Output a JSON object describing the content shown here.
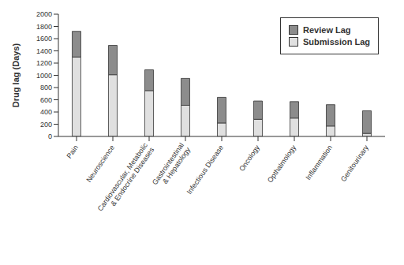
{
  "chart_data": {
    "type": "bar",
    "stacked": true,
    "y_label": "Drug lag (Days)",
    "categories": [
      "Pain",
      "Neuroscience",
      "Cardiovascular, Metabolic & Endocrine Diseases",
      "Gastrointestinal & Hepatology",
      "Infectious Disease",
      "Oncology",
      "Opthalmology",
      "Inflammation",
      "Genitourinary"
    ],
    "series": [
      {
        "name": "Submission Lag",
        "color": "#e0e0e0",
        "values": [
          1300,
          1010,
          750,
          510,
          220,
          280,
          300,
          170,
          50
        ]
      },
      {
        "name": "Review Lag",
        "color": "#8c8c8c",
        "values": [
          420,
          480,
          340,
          440,
          420,
          300,
          270,
          350,
          370
        ]
      }
    ],
    "ylim": [
      0,
      2000
    ],
    "yticks": [
      0,
      200,
      400,
      600,
      800,
      1000,
      1200,
      1400,
      1600,
      1800,
      2000
    ],
    "grid": false,
    "legend": "upper right"
  }
}
